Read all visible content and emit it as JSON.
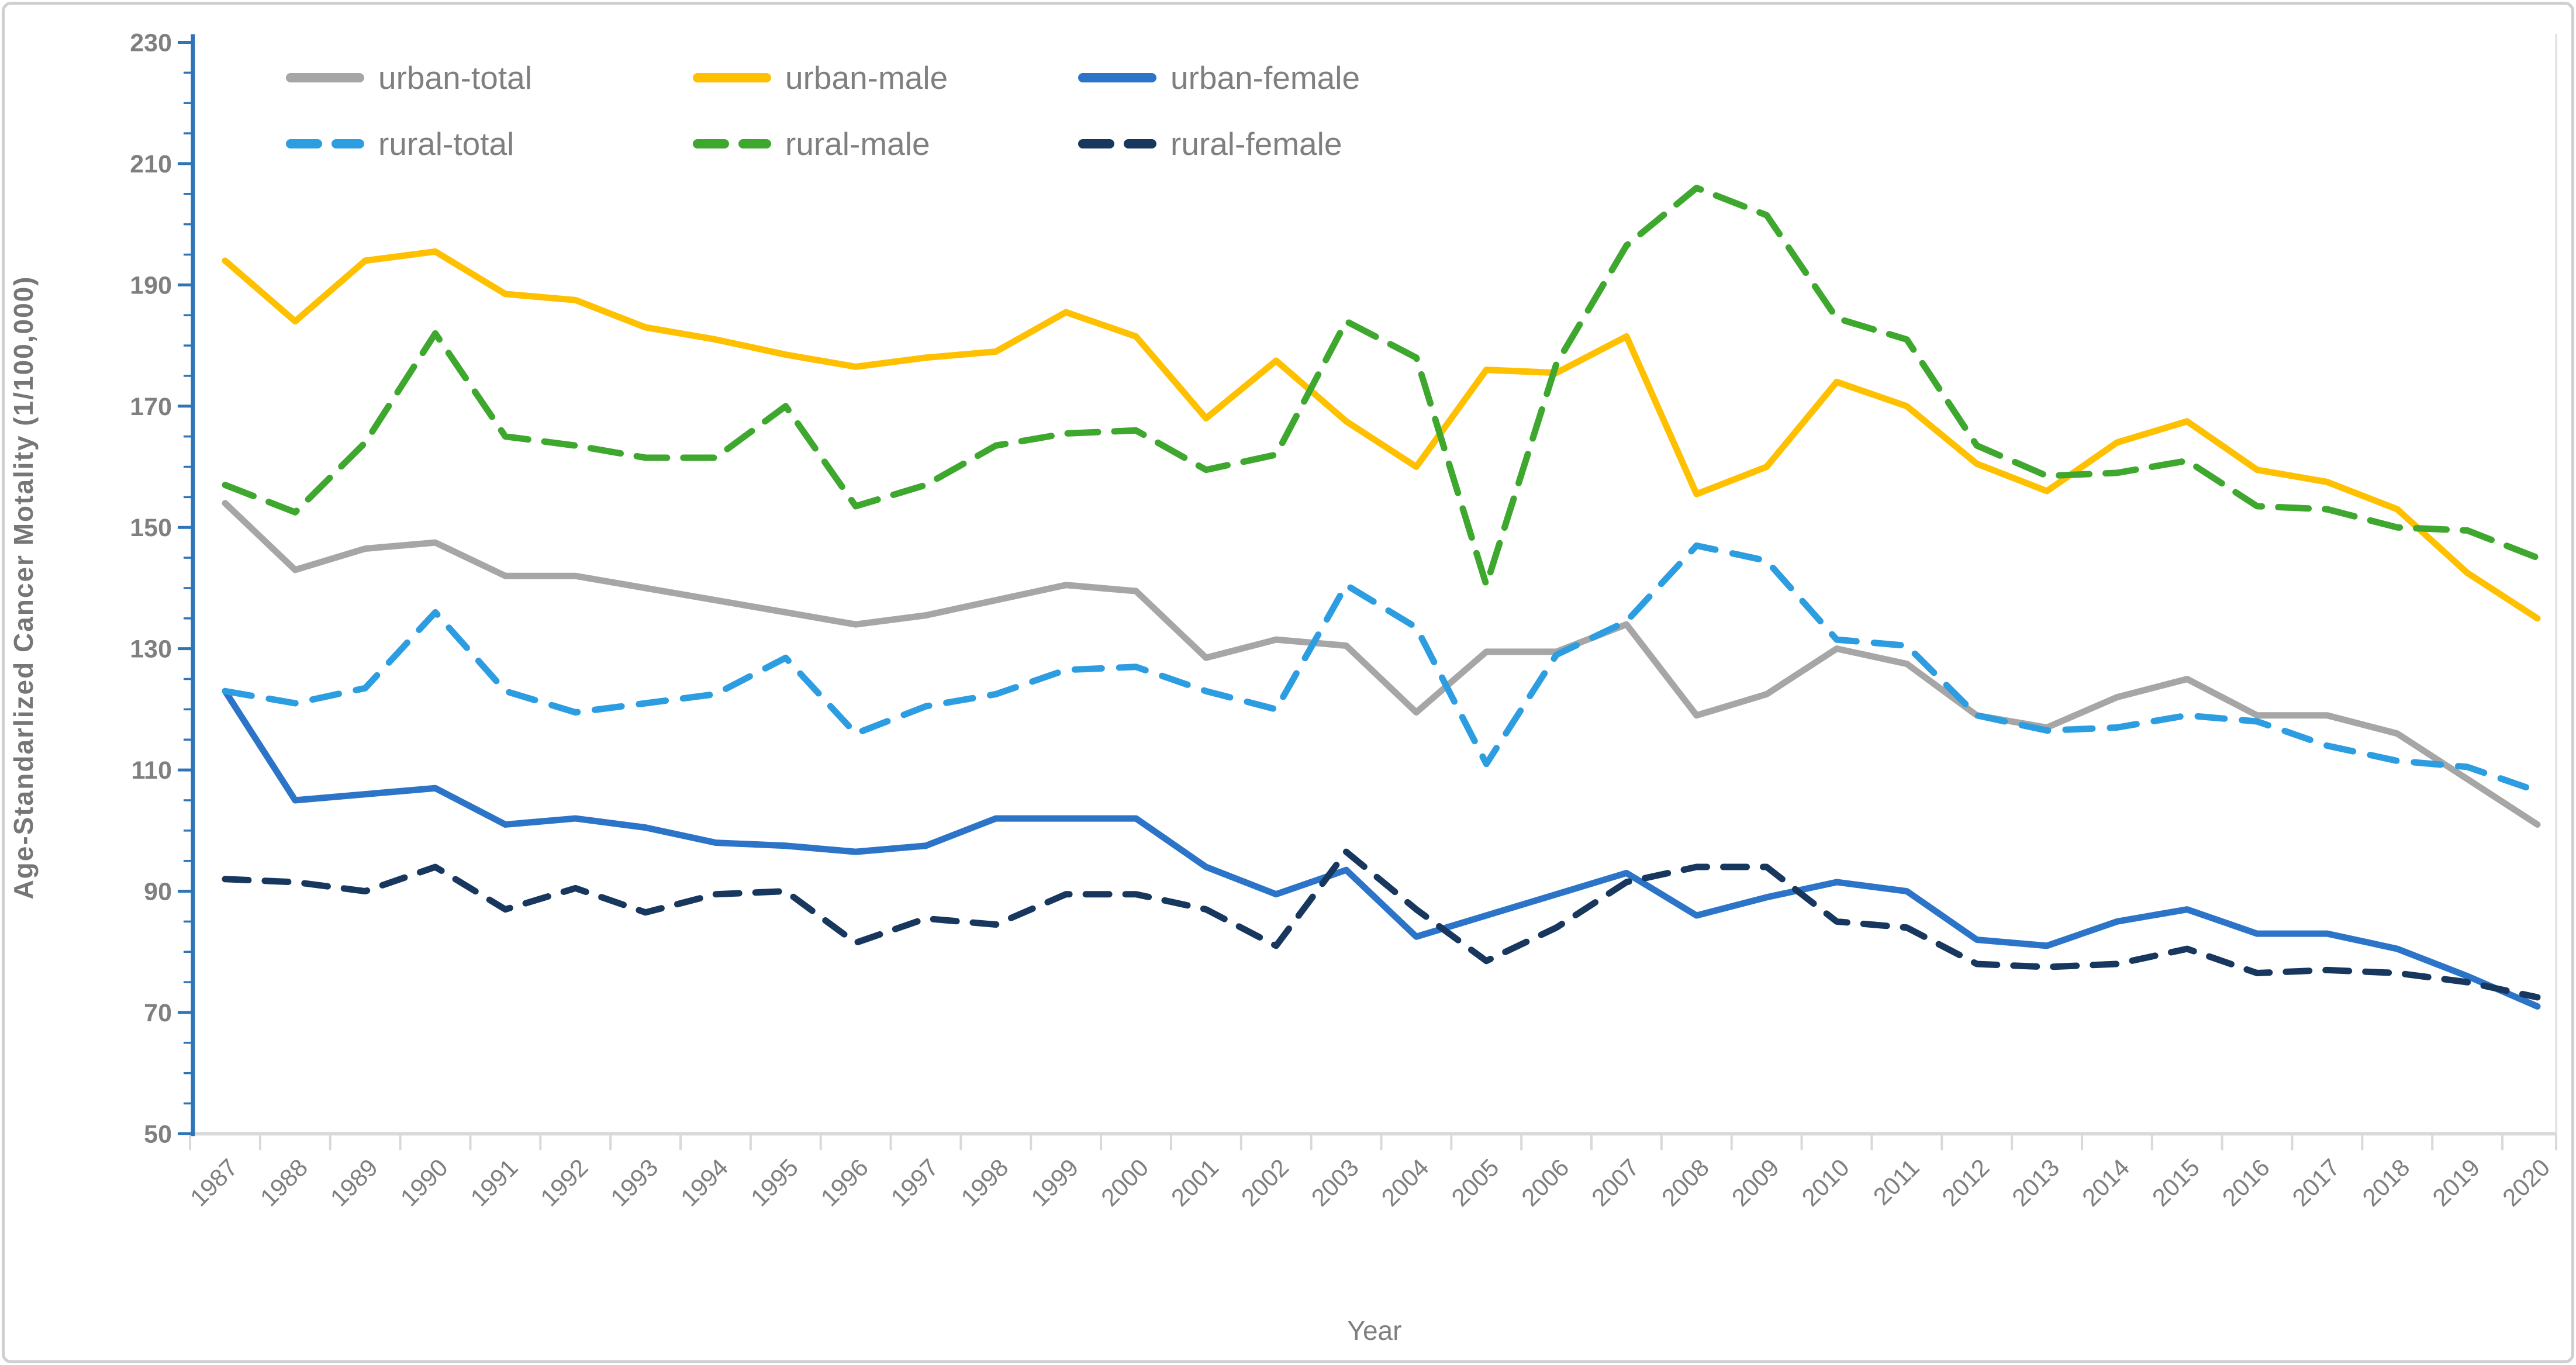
{
  "chart_data": {
    "type": "line",
    "title": "",
    "xlabel": "Year",
    "ylabel": "Age-Standarlized Cancer Motality (1/100,000)",
    "ylim": [
      50,
      230
    ],
    "ytick_step": 20,
    "ytick_minor_step": 5,
    "ytick_labels": [
      "50",
      "70",
      "90",
      "110",
      "130",
      "150",
      "170",
      "190",
      "210",
      "230"
    ],
    "grid": false,
    "legend_position": "top-left-two-rows",
    "x": [
      1987,
      1988,
      1989,
      1990,
      1991,
      1992,
      1993,
      1994,
      1995,
      1996,
      1997,
      1998,
      1999,
      2000,
      2001,
      2002,
      2003,
      2004,
      2005,
      2006,
      2007,
      2008,
      2009,
      2010,
      2011,
      2012,
      2013,
      2014,
      2015,
      2016,
      2017,
      2018,
      2019,
      2020
    ],
    "series": [
      {
        "name": "urban-total",
        "color": "#A6A6A6",
        "dash": "solid",
        "values": [
          154,
          143,
          146.5,
          147.5,
          142,
          142,
          140,
          138,
          136,
          134,
          135.5,
          138,
          140.5,
          139.5,
          128.5,
          131.5,
          130.5,
          119.5,
          129.5,
          129.5,
          134,
          119,
          122.5,
          130,
          127.5,
          119,
          117,
          122,
          125,
          119,
          119,
          116,
          108.5,
          101
        ]
      },
      {
        "name": "urban-male",
        "color": "#FFC000",
        "dash": "solid",
        "values": [
          194,
          184,
          194,
          195.5,
          188.5,
          187.5,
          183,
          181,
          178.5,
          176.5,
          178,
          179,
          185.5,
          181.5,
          168,
          177.5,
          167.5,
          160,
          176,
          175.5,
          181.5,
          155.5,
          160,
          174,
          170,
          160.5,
          156,
          164,
          167.5,
          159.5,
          157.5,
          153,
          142.5,
          135
        ]
      },
      {
        "name": "urban-female",
        "color": "#2B74C7",
        "dash": "solid",
        "values": [
          123,
          105,
          106,
          107,
          101,
          102,
          100.5,
          98,
          97.5,
          96.5,
          97.5,
          102,
          102,
          102,
          94,
          89.5,
          93.5,
          82.5,
          86,
          89.5,
          93,
          86,
          89,
          91.5,
          90,
          82,
          81,
          85,
          87,
          83,
          83,
          80.5,
          76,
          71
        ]
      },
      {
        "name": "rural-total",
        "color": "#2D9DE2",
        "dash": "dashed",
        "values": [
          123,
          121,
          123.5,
          136,
          123,
          119.5,
          121,
          122.5,
          128.5,
          116,
          120.5,
          122.5,
          126.5,
          127,
          123,
          120,
          140.5,
          133.5,
          111,
          129,
          134.5,
          147,
          144.5,
          131.5,
          130.5,
          119,
          116.5,
          117,
          119,
          118,
          114,
          111.5,
          110.5,
          106.5
        ]
      },
      {
        "name": "rural-male",
        "color": "#3EA72E",
        "dash": "dashed",
        "values": [
          157,
          152.5,
          164,
          182,
          165,
          163.5,
          161.5,
          161.5,
          170,
          153.5,
          157,
          163.5,
          165.5,
          166,
          159.5,
          162,
          184,
          178,
          140.5,
          177,
          196.5,
          206,
          201.5,
          184.5,
          181,
          163.5,
          158.5,
          159,
          161,
          153.5,
          153,
          150,
          149.5,
          145
        ]
      },
      {
        "name": "rural-female",
        "color": "#17375E",
        "dash": "dashed",
        "values": [
          92,
          91.5,
          90,
          94,
          87,
          90.5,
          86.5,
          89.5,
          90,
          81.5,
          85.5,
          84.5,
          89.5,
          89.5,
          87,
          81,
          96.5,
          87,
          78.5,
          84,
          91.5,
          94,
          94,
          85,
          84,
          78,
          77.5,
          78,
          80.5,
          76.5,
          77,
          76.5,
          75,
          72.5
        ]
      }
    ],
    "legend_rows": [
      [
        "urban-total",
        "urban-male",
        "urban-female"
      ],
      [
        "rural-total",
        "rural-male",
        "rural-female"
      ]
    ],
    "axis_colors": {
      "y_axis": "#2E75B6",
      "x_axis": "#D9D9D9",
      "labels": "#7F7F7F",
      "title": "#767676"
    }
  }
}
